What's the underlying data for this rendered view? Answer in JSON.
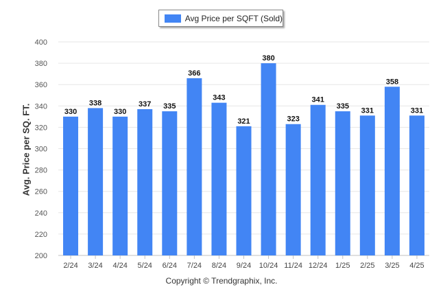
{
  "legend": {
    "label": "Avg Price per SQFT (Sold)",
    "color": "#4285f4"
  },
  "copyright": "Copyright © Trendgraphix, Inc.",
  "chart_data": {
    "type": "bar",
    "categories": [
      "2/24",
      "3/24",
      "4/24",
      "5/24",
      "6/24",
      "7/24",
      "8/24",
      "9/24",
      "10/24",
      "11/24",
      "12/24",
      "1/25",
      "2/25",
      "3/25",
      "4/25"
    ],
    "series": [
      {
        "name": "Avg Price per SQFT (Sold)",
        "values": [
          330,
          338,
          330,
          337,
          335,
          366,
          343,
          321,
          380,
          323,
          341,
          335,
          331,
          358,
          331
        ]
      }
    ],
    "title": "",
    "xlabel": "",
    "ylabel": "Avg. Price per SQ. FT.",
    "ylim": [
      200,
      400
    ],
    "yticks": [
      200,
      220,
      240,
      260,
      280,
      300,
      320,
      340,
      360,
      380,
      400
    ],
    "grid": true,
    "legend_position": "top-center",
    "bar_color": "#4285f4"
  }
}
